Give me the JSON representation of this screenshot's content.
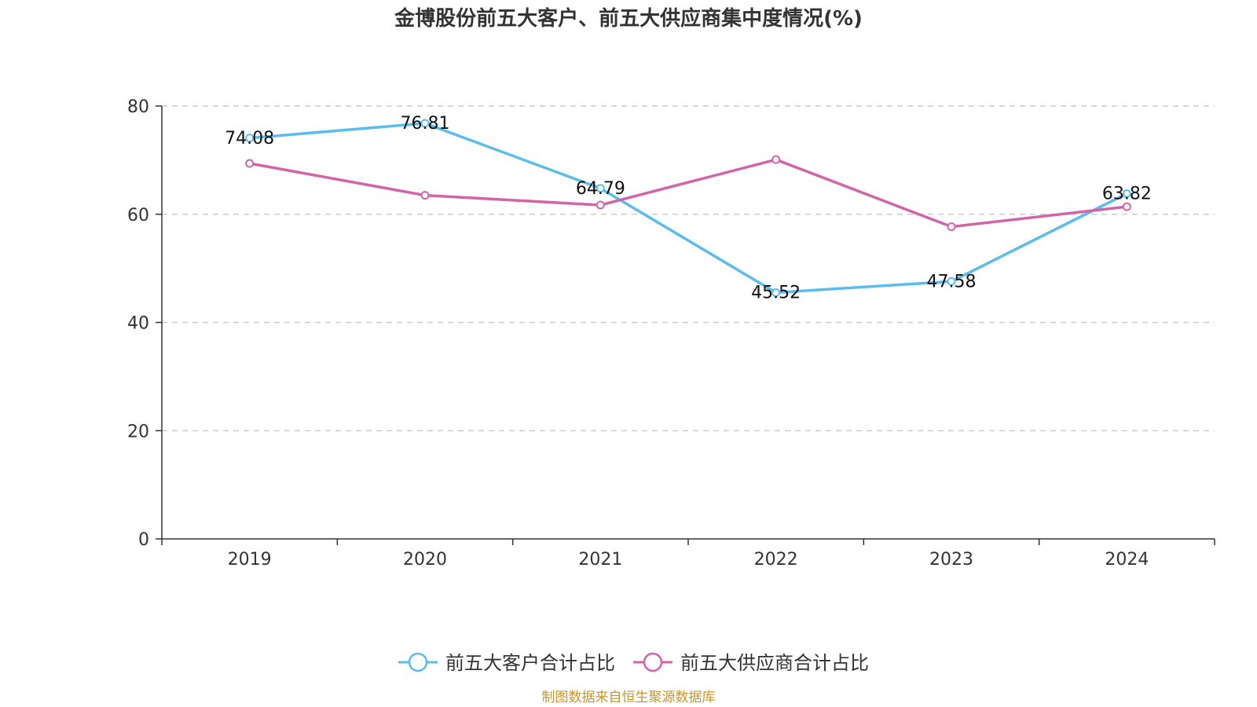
{
  "chart_data": {
    "type": "line",
    "title": "金博股份前五大客户、前五大供应商集中度情况(%)",
    "categories": [
      "2019",
      "2020",
      "2021",
      "2022",
      "2023",
      "2024"
    ],
    "ylim": [
      0,
      80
    ],
    "yticks": [
      0,
      20,
      40,
      60,
      80
    ],
    "grid": true,
    "legend_position": "bottom-center",
    "series": [
      {
        "name": "前五大客户合计占比",
        "color": "#5bbcee",
        "values": [
          74.08,
          76.81,
          64.79,
          45.52,
          47.58,
          63.82
        ],
        "labels": [
          "74.08",
          "76.81",
          "64.79",
          "45.52",
          "47.58",
          "63.82"
        ]
      },
      {
        "name": "前五大供应商合计占比",
        "color": "#d264a8",
        "values": [
          69.4,
          63.5,
          61.7,
          70.1,
          57.7,
          61.4
        ]
      }
    ]
  },
  "source_note": "制图数据来自恒生聚源数据库"
}
